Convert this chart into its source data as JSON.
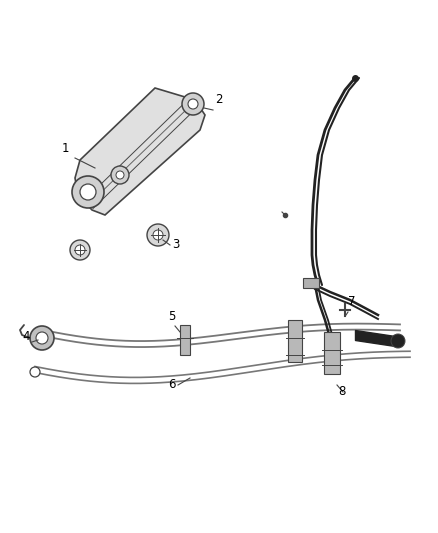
{
  "bg_color": "#ffffff",
  "line_color": "#444444",
  "label_color": "#000000",
  "cable_color": "#777777",
  "dark_color": "#222222",
  "fig_w": 4.38,
  "fig_h": 5.33,
  "dpi": 100
}
